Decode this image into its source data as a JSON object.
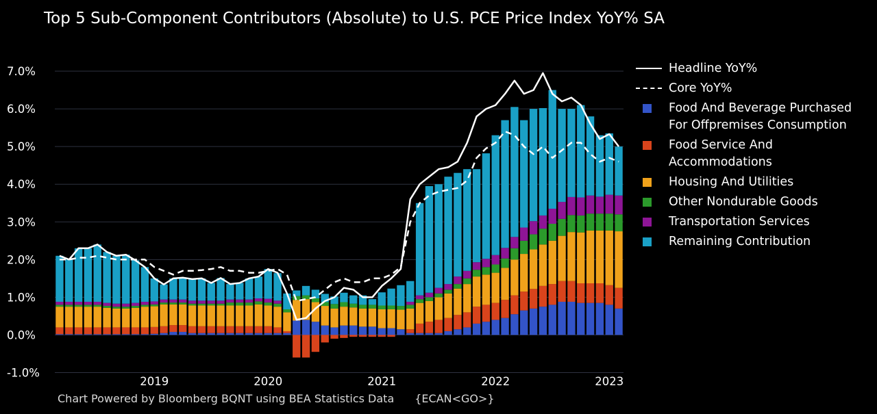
{
  "title": "Top 5 Sub-Component Contributors (Absolute) to U.S. PCE Price Index YoY% SA",
  "footer": {
    "source": "Chart Powered by Bloomberg BQNT using BEA Statistics Data",
    "code": "{ECAN<GO>}"
  },
  "chart_data": {
    "type": "bar",
    "stacked": true,
    "x_start": "2018-03",
    "x_end": "2023-03",
    "x": [
      "2018-03",
      "2018-04",
      "2018-05",
      "2018-06",
      "2018-07",
      "2018-08",
      "2018-09",
      "2018-10",
      "2018-11",
      "2018-12",
      "2019-01",
      "2019-02",
      "2019-03",
      "2019-04",
      "2019-05",
      "2019-06",
      "2019-07",
      "2019-08",
      "2019-09",
      "2019-10",
      "2019-11",
      "2019-12",
      "2020-01",
      "2020-02",
      "2020-03",
      "2020-04",
      "2020-05",
      "2020-06",
      "2020-07",
      "2020-08",
      "2020-09",
      "2020-10",
      "2020-11",
      "2020-12",
      "2021-01",
      "2021-02",
      "2021-03",
      "2021-04",
      "2021-05",
      "2021-06",
      "2021-07",
      "2021-08",
      "2021-09",
      "2021-10",
      "2021-11",
      "2021-12",
      "2022-01",
      "2022-02",
      "2022-03",
      "2022-04",
      "2022-05",
      "2022-06",
      "2022-07",
      "2022-08",
      "2022-09",
      "2022-10",
      "2022-11",
      "2022-12",
      "2023-01",
      "2023-02"
    ],
    "x_ticks": [
      {
        "label": "2019",
        "x": "2019-01"
      },
      {
        "label": "2020",
        "x": "2020-01"
      },
      {
        "label": "2021",
        "x": "2021-01"
      },
      {
        "label": "2022",
        "x": "2022-01"
      },
      {
        "label": "2023",
        "x": "2023-01"
      }
    ],
    "yticks": [
      -1,
      0,
      1,
      2,
      3,
      4,
      5,
      6,
      7
    ],
    "ytick_labels": [
      "-1.0%",
      "0.0%",
      "1.0%",
      "2.0%",
      "3.0%",
      "4.0%",
      "5.0%",
      "6.0%",
      "7.0%"
    ],
    "ylim": [
      -1.1,
      7.4
    ],
    "grid": true,
    "legend_position": "right",
    "series": [
      {
        "name": "Food And Beverage Purchased For Offpremises Consumption",
        "legend_lines": [
          "Food And Beverage Purchased",
          "For Offpremises Consumption"
        ],
        "color": "#3354c8",
        "values": [
          0.02,
          0.02,
          0.02,
          0.02,
          0.02,
          0.02,
          0.02,
          0.02,
          0.02,
          0.02,
          0.03,
          0.05,
          0.08,
          0.08,
          0.05,
          0.05,
          0.05,
          0.05,
          0.05,
          0.05,
          0.05,
          0.05,
          0.05,
          0.05,
          0.05,
          0.38,
          0.4,
          0.35,
          0.25,
          0.2,
          0.25,
          0.25,
          0.22,
          0.22,
          0.18,
          0.18,
          0.15,
          0.05,
          0.05,
          0.05,
          0.05,
          0.1,
          0.15,
          0.2,
          0.3,
          0.35,
          0.4,
          0.45,
          0.55,
          0.65,
          0.7,
          0.75,
          0.8,
          0.88,
          0.88,
          0.85,
          0.85,
          0.85,
          0.8,
          0.7
        ]
      },
      {
        "name": "Food Service And Accommodations",
        "legend_lines": [
          "Food Service And",
          "Accommodations"
        ],
        "color": "#d9441c",
        "values": [
          0.18,
          0.18,
          0.18,
          0.18,
          0.18,
          0.18,
          0.18,
          0.18,
          0.18,
          0.18,
          0.18,
          0.18,
          0.18,
          0.18,
          0.18,
          0.18,
          0.18,
          0.18,
          0.18,
          0.18,
          0.18,
          0.18,
          0.18,
          0.15,
          0.05,
          -0.6,
          -0.6,
          -0.45,
          -0.2,
          -0.1,
          -0.08,
          -0.05,
          -0.05,
          -0.05,
          -0.05,
          -0.05,
          0.0,
          0.1,
          0.25,
          0.3,
          0.35,
          0.35,
          0.38,
          0.4,
          0.45,
          0.45,
          0.45,
          0.48,
          0.5,
          0.5,
          0.52,
          0.55,
          0.55,
          0.55,
          0.55,
          0.52,
          0.52,
          0.52,
          0.52,
          0.55
        ]
      },
      {
        "name": "Housing And Utilities",
        "legend_lines": [
          "Housing And Utilities"
        ],
        "color": "#f0a21b",
        "values": [
          0.55,
          0.55,
          0.55,
          0.55,
          0.55,
          0.52,
          0.5,
          0.5,
          0.52,
          0.55,
          0.55,
          0.58,
          0.55,
          0.55,
          0.55,
          0.55,
          0.55,
          0.55,
          0.55,
          0.55,
          0.55,
          0.58,
          0.55,
          0.55,
          0.5,
          0.55,
          0.55,
          0.52,
          0.52,
          0.5,
          0.5,
          0.48,
          0.48,
          0.48,
          0.5,
          0.5,
          0.52,
          0.55,
          0.55,
          0.55,
          0.6,
          0.65,
          0.7,
          0.75,
          0.8,
          0.8,
          0.8,
          0.85,
          0.95,
          1.0,
          1.05,
          1.1,
          1.15,
          1.2,
          1.3,
          1.35,
          1.4,
          1.4,
          1.45,
          1.5
        ]
      },
      {
        "name": "Other Nondurable Goods",
        "legend_lines": [
          "Other Nondurable Goods"
        ],
        "color": "#2b9a2b",
        "values": [
          0.05,
          0.05,
          0.05,
          0.05,
          0.05,
          0.05,
          0.05,
          0.05,
          0.05,
          0.05,
          0.05,
          0.05,
          0.05,
          0.05,
          0.05,
          0.05,
          0.05,
          0.05,
          0.08,
          0.08,
          0.08,
          0.08,
          0.08,
          0.08,
          0.08,
          0.1,
          0.1,
          0.1,
          0.1,
          0.12,
          0.12,
          0.1,
          0.1,
          0.1,
          0.1,
          0.1,
          0.1,
          0.1,
          0.1,
          0.1,
          0.1,
          0.1,
          0.12,
          0.15,
          0.18,
          0.2,
          0.22,
          0.25,
          0.3,
          0.35,
          0.4,
          0.42,
          0.45,
          0.45,
          0.45,
          0.45,
          0.45,
          0.45,
          0.45,
          0.45
        ]
      },
      {
        "name": "Transportation Services",
        "legend_lines": [
          "Transportation Services"
        ],
        "color": "#8e1596",
        "values": [
          0.08,
          0.08,
          0.08,
          0.08,
          0.08,
          0.08,
          0.08,
          0.08,
          0.08,
          0.08,
          0.08,
          0.08,
          0.08,
          0.08,
          0.08,
          0.08,
          0.08,
          0.08,
          0.08,
          0.08,
          0.08,
          0.08,
          0.1,
          0.08,
          0.0,
          0.0,
          0.0,
          0.0,
          0.0,
          0.0,
          0.0,
          0.0,
          0.0,
          0.0,
          0.0,
          0.0,
          0.0,
          0.08,
          0.1,
          0.12,
          0.15,
          0.15,
          0.2,
          0.2,
          0.2,
          0.22,
          0.25,
          0.28,
          0.3,
          0.35,
          0.35,
          0.35,
          0.4,
          0.45,
          0.48,
          0.48,
          0.48,
          0.45,
          0.5,
          0.5
        ]
      },
      {
        "name": "Remaining Contribution",
        "legend_lines": [
          "Remaining Contribution"
        ],
        "color": "#1aa0c6",
        "values": [
          1.22,
          1.12,
          1.42,
          1.42,
          1.52,
          1.35,
          1.27,
          1.3,
          1.13,
          0.92,
          0.61,
          0.4,
          0.56,
          0.58,
          0.57,
          0.59,
          0.47,
          0.6,
          0.41,
          0.44,
          0.56,
          0.58,
          0.79,
          0.73,
          0.42,
          0.15,
          0.25,
          0.23,
          0.22,
          0.2,
          0.25,
          0.22,
          0.25,
          0.15,
          0.35,
          0.45,
          0.55,
          0.55,
          2.45,
          2.83,
          2.75,
          2.85,
          2.75,
          2.7,
          2.47,
          2.8,
          3.18,
          3.39,
          3.45,
          2.85,
          2.98,
          2.85,
          3.15,
          2.47,
          2.34,
          2.45,
          2.1,
          1.63,
          1.63,
          1.3
        ]
      },
      {
        "name": "Headline YoY%",
        "legend_lines": [
          "Headline YoY%"
        ],
        "kind": "line",
        "style": "solid",
        "color": "#ffffff",
        "values": [
          2.1,
          2.0,
          2.3,
          2.3,
          2.4,
          2.2,
          2.1,
          2.13,
          1.98,
          1.8,
          1.5,
          1.34,
          1.5,
          1.52,
          1.48,
          1.5,
          1.38,
          1.51,
          1.35,
          1.38,
          1.5,
          1.55,
          1.75,
          1.65,
          1.1,
          0.4,
          0.45,
          0.7,
          0.9,
          1.0,
          1.25,
          1.2,
          1.0,
          1.0,
          1.3,
          1.5,
          1.75,
          3.6,
          4.0,
          4.2,
          4.4,
          4.45,
          4.6,
          5.1,
          5.8,
          6.0,
          6.1,
          6.4,
          6.75,
          6.4,
          6.5,
          6.95,
          6.4,
          6.2,
          6.3,
          6.1,
          5.6,
          5.2,
          5.33,
          5.0
        ]
      },
      {
        "name": "Core YoY%",
        "legend_lines": [
          "Core YoY%"
        ],
        "kind": "line",
        "style": "dashed",
        "color": "#ffffff",
        "values": [
          2.0,
          2.0,
          2.05,
          2.05,
          2.1,
          2.05,
          2.0,
          2.0,
          2.0,
          2.0,
          1.8,
          1.7,
          1.6,
          1.7,
          1.7,
          1.72,
          1.75,
          1.8,
          1.7,
          1.7,
          1.65,
          1.65,
          1.7,
          1.75,
          1.6,
          0.9,
          0.95,
          1.0,
          1.2,
          1.4,
          1.5,
          1.4,
          1.4,
          1.5,
          1.5,
          1.6,
          1.8,
          3.0,
          3.5,
          3.7,
          3.8,
          3.85,
          3.9,
          4.1,
          4.7,
          4.95,
          5.1,
          5.4,
          5.3,
          5.0,
          4.8,
          5.0,
          4.7,
          4.9,
          5.1,
          5.1,
          4.8,
          4.6,
          4.7,
          4.6
        ]
      }
    ]
  }
}
